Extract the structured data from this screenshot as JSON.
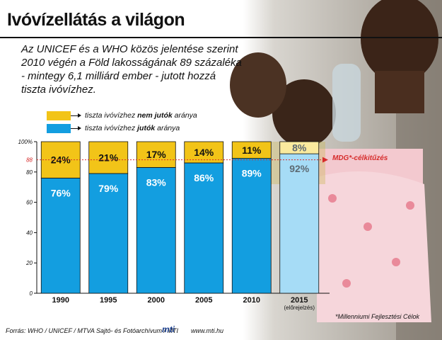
{
  "header": {
    "title": "Ivóvízellátás a világon",
    "subtitle": "Az UNICEF és a WHO közös jelentése szerint\n2010 végén a Föld lakosságának 89 százaléka\n- mintegy 6,1 milliárd ember - jutott hozzá\ntiszta ivóvízhez."
  },
  "legend": {
    "no_access": {
      "before": "tiszta ivóvízhez ",
      "strong": "nem jutók",
      "after": " aránya"
    },
    "access": {
      "before": "tiszta ivóvízhez ",
      "strong": "jutók",
      "after": " aránya"
    }
  },
  "colors": {
    "access": "#139ee0",
    "no_access": "#f2c418",
    "forecast_access": "#a6dcf6",
    "forecast_no_access": "#faea9e",
    "target": "#d62b2b"
  },
  "chart_data": {
    "type": "bar",
    "stacked": true,
    "categories": [
      "1990",
      "1995",
      "2000",
      "2005",
      "2010",
      "2015"
    ],
    "category_sublabels": [
      "",
      "",
      "",
      "",
      "",
      "(előrejelzés)"
    ],
    "forecast": [
      false,
      false,
      false,
      false,
      false,
      true
    ],
    "series": [
      {
        "name": "tiszta ivóvízhez jutók aránya",
        "values": [
          76,
          79,
          83,
          86,
          89,
          92
        ],
        "labels": [
          "76%",
          "79%",
          "83%",
          "86%",
          "89%",
          "92%"
        ]
      },
      {
        "name": "tiszta ivóvízhez nem jutók aránya",
        "values": [
          24,
          21,
          17,
          14,
          11,
          8
        ],
        "labels": [
          "24%",
          "21%",
          "17%",
          "14%",
          "11%",
          "8%"
        ]
      }
    ],
    "ylim": [
      0,
      100
    ],
    "yticks": [
      0,
      20,
      40,
      60,
      80,
      100
    ],
    "ytick_labels": [
      "0",
      "20",
      "40",
      "60",
      "80",
      "100%"
    ],
    "target": {
      "value": 88,
      "tick_label": "88",
      "label": "MDG*-célkitűzés"
    },
    "legend_position": "top-left"
  },
  "footer": {
    "source": "Forrás: WHO / UNICEF / MTVA Sajtó- és Fotóarchívum / MTI",
    "logo_text": "mti",
    "website": "www.mti.hu",
    "footnote": "*Millenniumi Fejlesztési Célok"
  }
}
